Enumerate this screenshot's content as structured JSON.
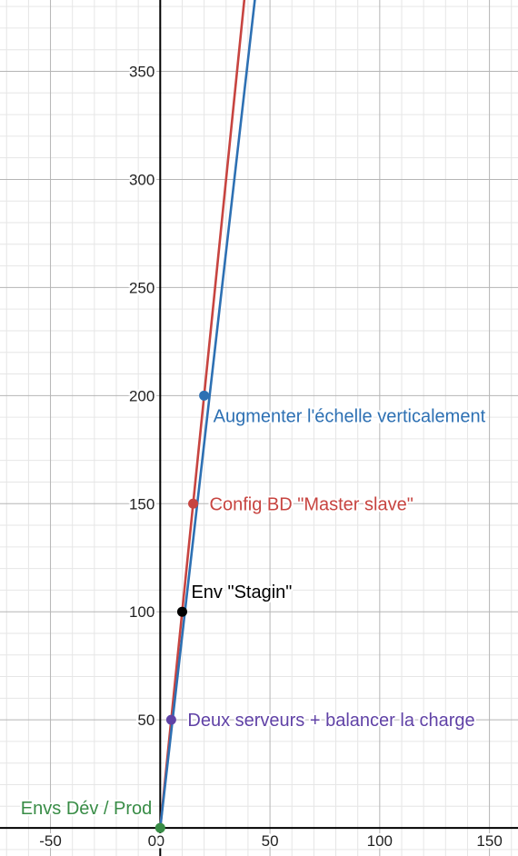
{
  "chart_data": {
    "type": "scatter",
    "xlim": [
      -73,
      163
    ],
    "ylim": [
      -13,
      383
    ],
    "grid": true,
    "x_ticks": [
      -50,
      0,
      50,
      100,
      150
    ],
    "y_ticks": [
      50,
      100,
      150,
      200,
      250,
      300,
      350
    ],
    "lines": [
      {
        "color": "#c74440",
        "points": [
          [
            0,
            0
          ],
          [
            38.3,
            383
          ]
        ]
      },
      {
        "color": "#2d70b3",
        "points": [
          [
            0,
            0
          ],
          [
            43.1,
            383
          ]
        ]
      }
    ],
    "points": [
      {
        "x": 0,
        "y": 0,
        "label": "Envs Dév / Prod",
        "color": "#388c46",
        "label_side": "left"
      },
      {
        "x": 5,
        "y": 50,
        "label": "Deux serveurs + balancer la charge",
        "color": "#6042a6",
        "label_side": "right"
      },
      {
        "x": 10,
        "y": 100,
        "label": "Env \"Stagin\"",
        "color": "#000000",
        "label_side": "above-right"
      },
      {
        "x": 15,
        "y": 150,
        "label": "Config BD \"Master slave\"",
        "color": "#c74440",
        "label_side": "right"
      },
      {
        "x": 20,
        "y": 200,
        "label": "Augmenter l'échelle verticalement",
        "color": "#2d70b3",
        "label_side": "below-right"
      }
    ]
  }
}
